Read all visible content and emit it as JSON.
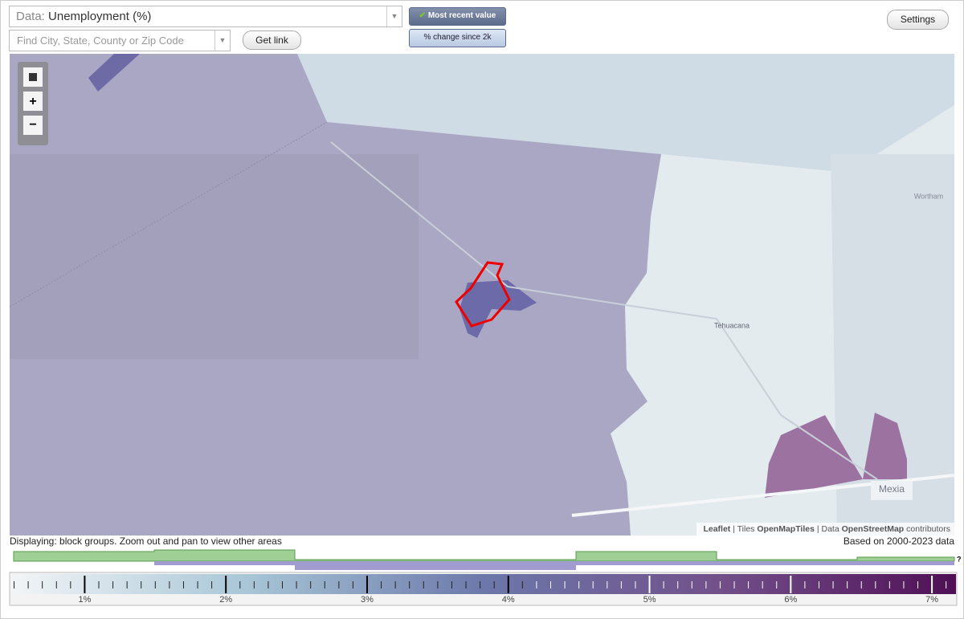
{
  "controls": {
    "data_prefix": "Data:",
    "data_value": "Unemployment (%)",
    "mode_active": "Most recent value",
    "mode_other": "% change since 2k",
    "search_placeholder": "Find City, State, County or Zip Code",
    "get_link": "Get link",
    "settings": "Settings"
  },
  "map": {
    "places": [
      "Tehuacana",
      "Wortham",
      "Mexia"
    ],
    "attribution": {
      "leaflet": "Leaflet",
      "tiles_prefix": "Tiles",
      "tiles": "OpenMapTiles",
      "data_prefix": "Data",
      "data": "OpenStreetMap",
      "contributors": "contributors"
    }
  },
  "status": {
    "displaying": "Displaying: block groups. Zoom out and pan to view other areas",
    "based_on": "Based on 2000-2023 data",
    "help": "?"
  },
  "legend": {
    "lim": [
      0.48,
      7.17
    ],
    "ticks": [
      {
        "value": 1,
        "label": "1%"
      },
      {
        "value": 2,
        "label": "2%"
      },
      {
        "value": 3,
        "label": "3%"
      },
      {
        "value": 4,
        "label": "4%"
      },
      {
        "value": 5,
        "label": "5%"
      },
      {
        "value": 6,
        "label": "6%"
      },
      {
        "value": 7,
        "label": "7%"
      }
    ]
  }
}
